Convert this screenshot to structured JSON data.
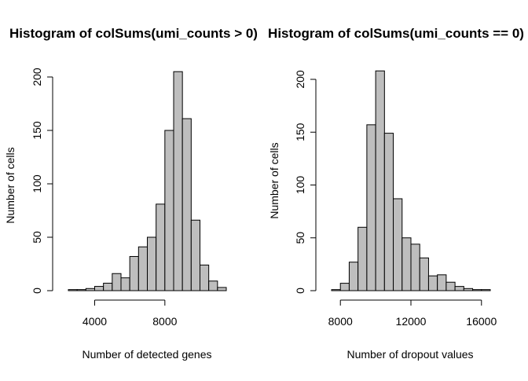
{
  "chart_data": [
    {
      "type": "bar",
      "title": "Histogram of colSums(umi_counts > 0)",
      "xlabel": "Number of detected genes",
      "ylabel": "Number of cells",
      "bin_edges": [
        2500,
        3000,
        3500,
        4000,
        4500,
        5000,
        5500,
        6000,
        6500,
        7000,
        7500,
        8000,
        8500,
        9000,
        9500,
        10000,
        10500,
        11000,
        11500
      ],
      "values": [
        1,
        1,
        2,
        4,
        7,
        16,
        12,
        32,
        41,
        50,
        81,
        150,
        205,
        161,
        66,
        24,
        9,
        3
      ],
      "xticks": [
        4000,
        8000
      ],
      "yticks": [
        0,
        50,
        100,
        150,
        200
      ],
      "xlim": [
        2500,
        11500
      ],
      "ylim": [
        0,
        205
      ],
      "bar_color": "#bebebe",
      "grid": false
    },
    {
      "type": "bar",
      "title": "Histogram of colSums(umi_counts == 0)",
      "xlabel": "Number of dropout values",
      "ylabel": "Number of cells",
      "bin_edges": [
        7500,
        8000,
        8500,
        9000,
        9500,
        10000,
        10500,
        11000,
        11500,
        12000,
        12500,
        13000,
        13500,
        14000,
        14500,
        15000,
        15500,
        16000,
        16500
      ],
      "values": [
        1,
        7,
        27,
        60,
        157,
        208,
        149,
        87,
        50,
        44,
        31,
        14,
        15,
        8,
        4,
        2,
        1,
        1
      ],
      "xticks": [
        8000,
        12000,
        16000
      ],
      "yticks": [
        0,
        50,
        100,
        150,
        200
      ],
      "xlim": [
        7500,
        16500
      ],
      "ylim": [
        0,
        208
      ],
      "bar_color": "#bebebe",
      "grid": false
    }
  ]
}
